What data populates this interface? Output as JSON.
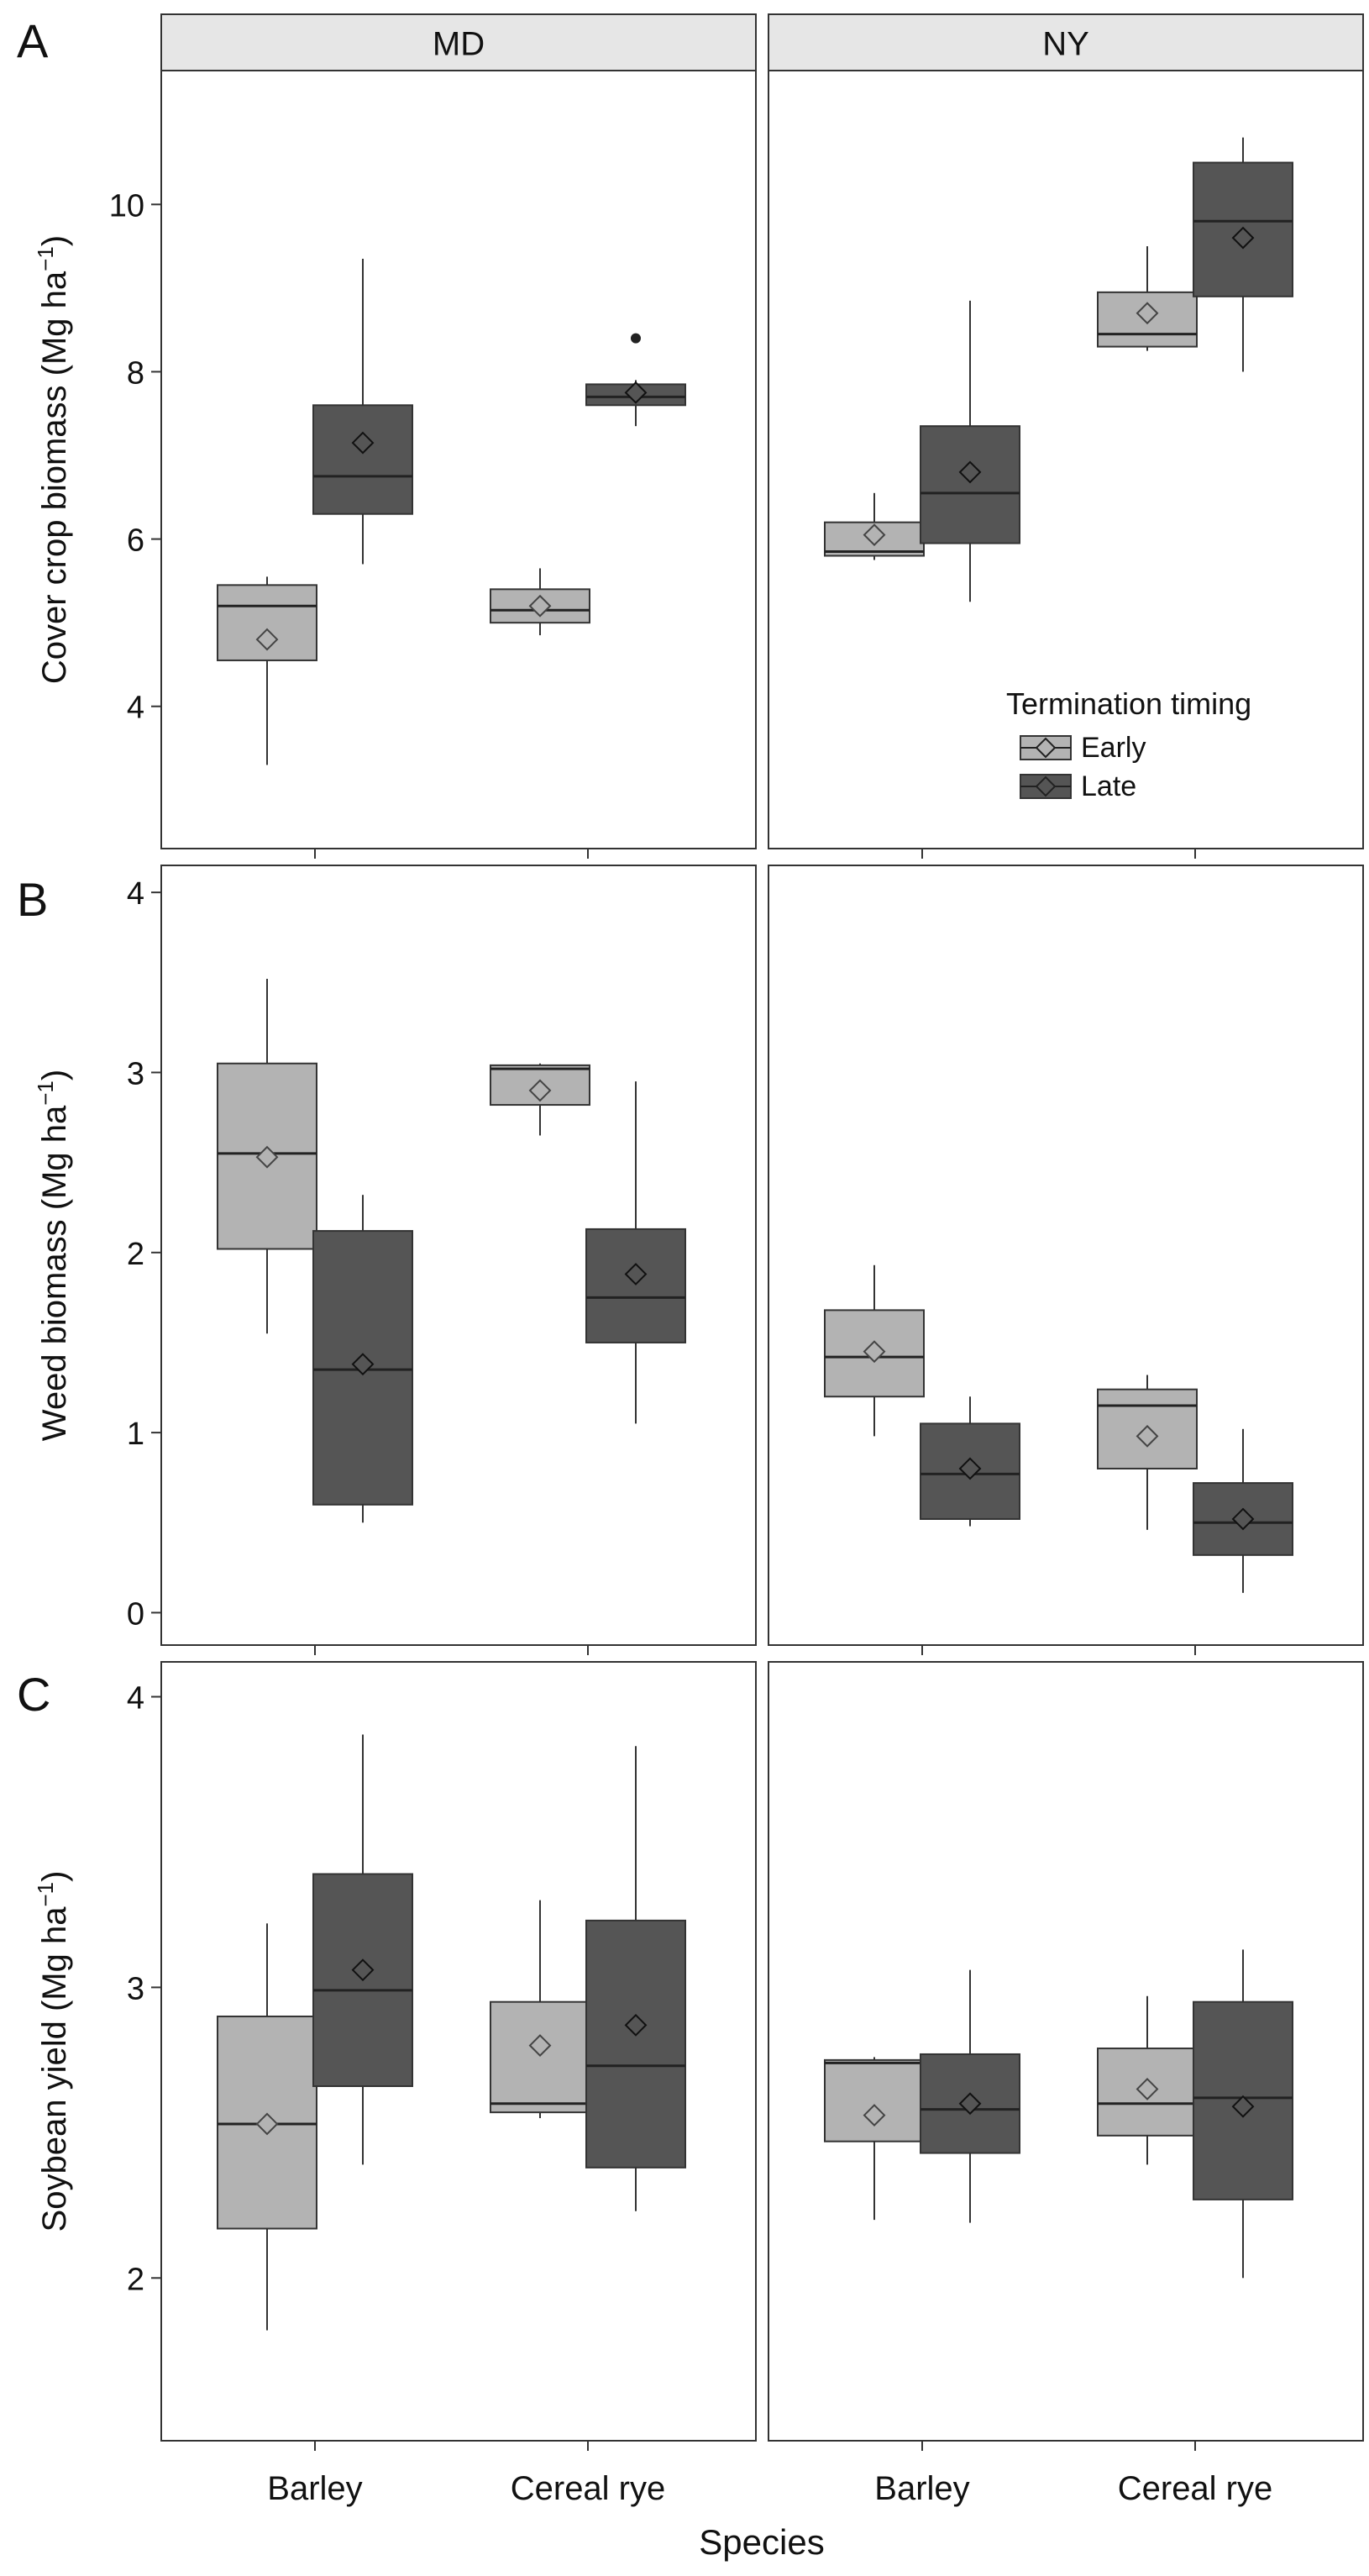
{
  "chart_data": {
    "type": "box",
    "strips": [
      "MD",
      "NY"
    ],
    "categories": [
      "Barley",
      "Cereal rye"
    ],
    "xlabel": "Species",
    "legend": {
      "title": "Termination timing",
      "position": "inside bottom-right of panel A, NY facet",
      "entries": [
        {
          "name": "Early",
          "color": "#b3b3b3"
        },
        {
          "name": "Late",
          "color": "#555555"
        }
      ]
    },
    "colors": {
      "early": "#b3b3b3",
      "late": "#555555",
      "strip": "#e6e6e6"
    },
    "panels": [
      {
        "letter": "A",
        "ylabel_main": "Cover crop biomass (Mg ha",
        "ylabel_sup": "−1",
        "ylabel_close": ")",
        "ylim": [
          2.3,
          11.6
        ],
        "yticks": [
          4,
          6,
          8,
          10
        ],
        "facets": [
          {
            "site": "MD",
            "groups": [
              {
                "species": "Barley",
                "timing": "Early",
                "min": 3.3,
                "q1": 4.55,
                "median": 5.2,
                "q3": 5.45,
                "max": 5.55,
                "mean": 4.8,
                "outliers": []
              },
              {
                "species": "Barley",
                "timing": "Late",
                "min": 5.7,
                "q1": 6.3,
                "median": 6.75,
                "q3": 7.6,
                "max": 9.35,
                "mean": 7.15,
                "outliers": []
              },
              {
                "species": "Cereal rye",
                "timing": "Early",
                "min": 4.85,
                "q1": 5.0,
                "median": 5.15,
                "q3": 5.4,
                "max": 5.65,
                "mean": 5.2,
                "outliers": []
              },
              {
                "species": "Cereal rye",
                "timing": "Late",
                "min": 7.35,
                "q1": 7.6,
                "median": 7.7,
                "q3": 7.85,
                "max": 7.9,
                "mean": 7.75,
                "outliers": [
                  8.4
                ]
              }
            ]
          },
          {
            "site": "NY",
            "groups": [
              {
                "species": "Barley",
                "timing": "Early",
                "min": 5.75,
                "q1": 5.8,
                "median": 5.85,
                "q3": 6.2,
                "max": 6.55,
                "mean": 6.05,
                "outliers": []
              },
              {
                "species": "Barley",
                "timing": "Late",
                "min": 5.25,
                "q1": 5.95,
                "median": 6.55,
                "q3": 7.35,
                "max": 8.85,
                "mean": 6.8,
                "outliers": []
              },
              {
                "species": "Cereal rye",
                "timing": "Early",
                "min": 8.25,
                "q1": 8.3,
                "median": 8.45,
                "q3": 8.95,
                "max": 9.5,
                "mean": 8.7,
                "outliers": []
              },
              {
                "species": "Cereal rye",
                "timing": "Late",
                "min": 8.0,
                "q1": 8.9,
                "median": 9.8,
                "q3": 10.5,
                "max": 10.8,
                "mean": 9.6,
                "outliers": []
              }
            ]
          }
        ]
      },
      {
        "letter": "B",
        "ylabel_main": "Weed biomass (Mg ha",
        "ylabel_sup": "−1",
        "ylabel_close": ")",
        "ylim": [
          -0.18,
          4.15
        ],
        "yticks": [
          0,
          1,
          2,
          3,
          4
        ],
        "facets": [
          {
            "site": "MD",
            "groups": [
              {
                "species": "Barley",
                "timing": "Early",
                "min": 1.55,
                "q1": 2.02,
                "median": 2.55,
                "q3": 3.05,
                "max": 3.52,
                "mean": 2.53,
                "outliers": []
              },
              {
                "species": "Barley",
                "timing": "Late",
                "min": 0.5,
                "q1": 0.6,
                "median": 1.35,
                "q3": 2.12,
                "max": 2.32,
                "mean": 1.38,
                "outliers": []
              },
              {
                "species": "Cereal rye",
                "timing": "Early",
                "min": 2.65,
                "q1": 2.82,
                "median": 3.02,
                "q3": 3.04,
                "max": 3.05,
                "mean": 2.9,
                "outliers": []
              },
              {
                "species": "Cereal rye",
                "timing": "Late",
                "min": 1.05,
                "q1": 1.5,
                "median": 1.75,
                "q3": 2.13,
                "max": 2.95,
                "mean": 1.88,
                "outliers": []
              }
            ]
          },
          {
            "site": "NY",
            "groups": [
              {
                "species": "Barley",
                "timing": "Early",
                "min": 0.98,
                "q1": 1.2,
                "median": 1.42,
                "q3": 1.68,
                "max": 1.93,
                "mean": 1.45,
                "outliers": []
              },
              {
                "species": "Barley",
                "timing": "Late",
                "min": 0.48,
                "q1": 0.52,
                "median": 0.77,
                "q3": 1.05,
                "max": 1.2,
                "mean": 0.8,
                "outliers": []
              },
              {
                "species": "Cereal rye",
                "timing": "Early",
                "min": 0.46,
                "q1": 0.8,
                "median": 1.15,
                "q3": 1.24,
                "max": 1.32,
                "mean": 0.98,
                "outliers": []
              },
              {
                "species": "Cereal rye",
                "timing": "Late",
                "min": 0.11,
                "q1": 0.32,
                "median": 0.5,
                "q3": 0.72,
                "max": 1.02,
                "mean": 0.52,
                "outliers": []
              }
            ]
          }
        ]
      },
      {
        "letter": "C",
        "ylabel_main": "Soybean yield (Mg ha",
        "ylabel_sup": "−1",
        "ylabel_close": ")",
        "ylim": [
          1.44,
          4.12
        ],
        "yticks": [
          2,
          3,
          4
        ],
        "facets": [
          {
            "site": "MD",
            "groups": [
              {
                "species": "Barley",
                "timing": "Early",
                "min": 1.82,
                "q1": 2.17,
                "median": 2.53,
                "q3": 2.9,
                "max": 3.22,
                "mean": 2.53,
                "outliers": []
              },
              {
                "species": "Barley",
                "timing": "Late",
                "min": 2.39,
                "q1": 2.66,
                "median": 2.99,
                "q3": 3.39,
                "max": 3.87,
                "mean": 3.06,
                "outliers": []
              },
              {
                "species": "Cereal rye",
                "timing": "Early",
                "min": 2.55,
                "q1": 2.57,
                "median": 2.6,
                "q3": 2.95,
                "max": 3.3,
                "mean": 2.8,
                "outliers": []
              },
              {
                "species": "Cereal rye",
                "timing": "Late",
                "min": 2.23,
                "q1": 2.38,
                "median": 2.73,
                "q3": 3.23,
                "max": 3.83,
                "mean": 2.87,
                "outliers": []
              }
            ]
          },
          {
            "site": "NY",
            "groups": [
              {
                "species": "Barley",
                "timing": "Early",
                "min": 2.2,
                "q1": 2.47,
                "median": 2.74,
                "q3": 2.75,
                "max": 2.76,
                "mean": 2.56,
                "outliers": []
              },
              {
                "species": "Barley",
                "timing": "Late",
                "min": 2.19,
                "q1": 2.43,
                "median": 2.58,
                "q3": 2.77,
                "max": 3.06,
                "mean": 2.6,
                "outliers": []
              },
              {
                "species": "Cereal rye",
                "timing": "Early",
                "min": 2.39,
                "q1": 2.49,
                "median": 2.6,
                "q3": 2.79,
                "max": 2.97,
                "mean": 2.65,
                "outliers": []
              },
              {
                "species": "Cereal rye",
                "timing": "Late",
                "min": 2.0,
                "q1": 2.27,
                "median": 2.62,
                "q3": 2.95,
                "max": 3.13,
                "mean": 2.59,
                "outliers": []
              }
            ]
          }
        ]
      }
    ]
  }
}
